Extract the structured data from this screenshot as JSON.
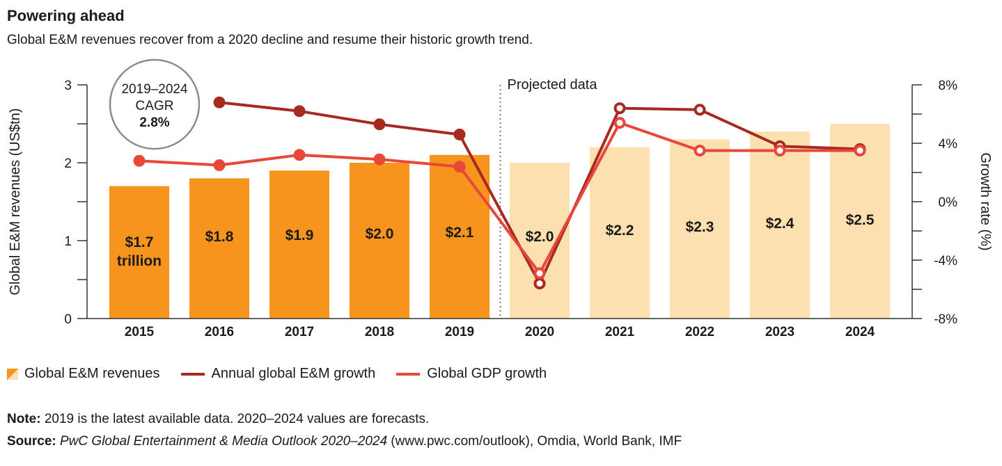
{
  "title": "Powering ahead",
  "subtitle": "Global E&M revenues recover from a 2020 decline and resume their historic growth trend.",
  "chart_data": {
    "type": "bar",
    "categories": [
      "2015",
      "2016",
      "2017",
      "2018",
      "2019",
      "2020",
      "2021",
      "2022",
      "2023",
      "2024"
    ],
    "series": [
      {
        "name": "Global E&M revenues",
        "type": "bar",
        "axis": "left",
        "values": [
          1.7,
          1.8,
          1.9,
          2.0,
          2.1,
          2.0,
          2.2,
          2.3,
          2.4,
          2.5
        ],
        "labels": [
          "$1.7 trillion",
          "$1.8",
          "$1.9",
          "$2.0",
          "$2.1",
          "$2.0",
          "$2.2",
          "$2.3",
          "$2.4",
          "$2.5"
        ],
        "color_actual": "#f7941d",
        "color_projected": "#fde0b0"
      },
      {
        "name": "Annual global E&M growth",
        "type": "line",
        "axis": "right",
        "values": [
          null,
          6.8,
          6.2,
          5.3,
          4.6,
          -5.6,
          6.4,
          6.3,
          3.8,
          3.6
        ],
        "color": "#a8291f"
      },
      {
        "name": "Global GDP growth",
        "type": "line",
        "axis": "right",
        "values": [
          2.8,
          2.5,
          3.2,
          2.9,
          2.4,
          -4.9,
          5.4,
          3.5,
          3.5,
          3.5
        ],
        "color": "#e8473a"
      }
    ],
    "left_axis": {
      "label": "Global E&M revenues (US$tn)",
      "ylim": [
        0,
        3
      ],
      "ticks": [
        "0",
        "1",
        "2",
        "3"
      ]
    },
    "right_axis": {
      "label": "Growth rate (%)",
      "ylim": [
        -8,
        8
      ],
      "ticks": [
        "-8%",
        "-4%",
        "0%",
        "4%",
        "8%"
      ]
    },
    "projection_start": "2020",
    "projection_label": "Projected data",
    "cagr": {
      "line1": "2019–2024",
      "line2": "CAGR",
      "value": "2.8%"
    },
    "legend_position": "bottom-left",
    "grid": false
  },
  "note": {
    "label": "Note:",
    "text": " 2019 is the latest available data. 2020–2024 values are forecasts."
  },
  "source": {
    "label": "Source:",
    "title": "PwC Global Entertainment & Media Outlook 2020–2024",
    "text": " (www.pwc.com/outlook), Omdia, World Bank, IMF"
  }
}
